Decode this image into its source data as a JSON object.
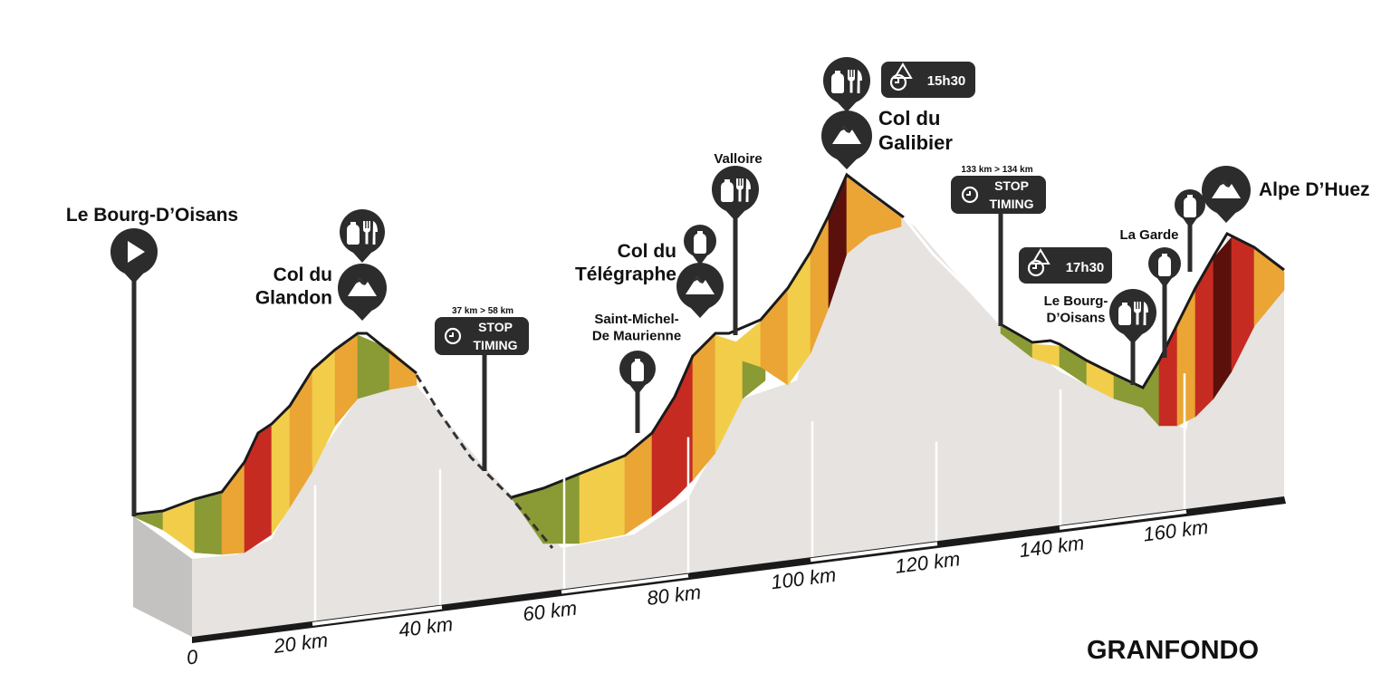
{
  "title": "GRANFONDO",
  "distance_labels": [
    "0",
    "20 km",
    "40 km",
    "60 km",
    "80 km",
    "100 km",
    "120 km",
    "140 km",
    "160 km"
  ],
  "places": {
    "start": "Le Bourg-D’Oisans",
    "glandon": [
      "Col du",
      "Glandon"
    ],
    "st_michel": [
      "Saint-Michel-",
      "De Maurienne"
    ],
    "telegraphe": [
      "Col du",
      "Télégraphe"
    ],
    "valloire": "Valloire",
    "galibier": [
      "Col du",
      "Galibier"
    ],
    "bourg_return": [
      "Le Bourg-",
      "D’Oisans"
    ],
    "la_garde": "La Garde",
    "finish": "Alpe D’Huez"
  },
  "stop_timing": [
    {
      "range": "37 km > 58 km",
      "line1": "STOP",
      "line2": "TIMING"
    },
    {
      "range": "133 km > 134 km",
      "line1": "STOP",
      "line2": "TIMING"
    }
  ],
  "cutoffs": [
    "15h30",
    "17h30"
  ],
  "icons": [
    "start-flag-icon",
    "bottle-icon",
    "food-icon",
    "summit-icon",
    "clock-icon",
    "warning-clock-icon"
  ],
  "colors": {
    "green": "#8a9a34",
    "yellow": "#f2cd4a",
    "orange": "#eaa535",
    "red": "#c62b22",
    "darkred": "#5c100c",
    "ground": "#e6e3e0",
    "pin": "#2c2c2c"
  }
}
